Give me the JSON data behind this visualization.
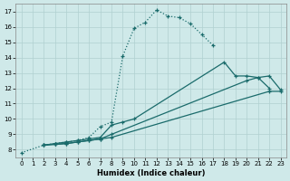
{
  "bg_color": "#cfe9e9",
  "grid_color": "#b0d0d0",
  "line_color": "#1a6b6b",
  "xlabel": "Humidex (Indice chaleur)",
  "xlim": [
    -0.5,
    23.5
  ],
  "ylim": [
    7.5,
    17.5
  ],
  "xticks": [
    0,
    1,
    2,
    3,
    4,
    5,
    6,
    7,
    8,
    9,
    10,
    11,
    12,
    13,
    14,
    15,
    16,
    17,
    18,
    19,
    20,
    21,
    22,
    23
  ],
  "yticks": [
    8,
    9,
    10,
    11,
    12,
    13,
    14,
    15,
    16,
    17
  ],
  "line1_x": [
    0,
    2,
    3,
    4,
    5,
    6,
    7,
    8,
    9,
    10,
    11,
    12,
    13,
    14,
    15,
    16,
    17
  ],
  "line1_y": [
    7.8,
    8.3,
    8.4,
    8.5,
    8.6,
    8.8,
    9.5,
    9.8,
    14.1,
    15.9,
    16.3,
    17.1,
    16.7,
    16.6,
    16.2,
    15.5,
    14.8
  ],
  "line1_style": "dotted",
  "line2_x": [
    2,
    3,
    4,
    5,
    6,
    7,
    8,
    9,
    10,
    18,
    19,
    20,
    21,
    22
  ],
  "line2_y": [
    8.3,
    8.4,
    8.5,
    8.6,
    8.7,
    8.8,
    9.6,
    9.8,
    10.0,
    13.7,
    12.8,
    12.8,
    12.7,
    12.0
  ],
  "line2_style": "solid",
  "line3_x": [
    2,
    3,
    4,
    5,
    6,
    7,
    8,
    20,
    21,
    22,
    23
  ],
  "line3_y": [
    8.3,
    8.35,
    8.4,
    8.5,
    8.6,
    8.7,
    9.0,
    12.5,
    12.7,
    12.8,
    11.9
  ],
  "line3_style": "solid",
  "line4_x": [
    2,
    3,
    4,
    5,
    6,
    7,
    8,
    22,
    23
  ],
  "line4_y": [
    8.3,
    8.35,
    8.4,
    8.5,
    8.6,
    8.7,
    8.8,
    11.8,
    11.8
  ],
  "line4_style": "solid"
}
